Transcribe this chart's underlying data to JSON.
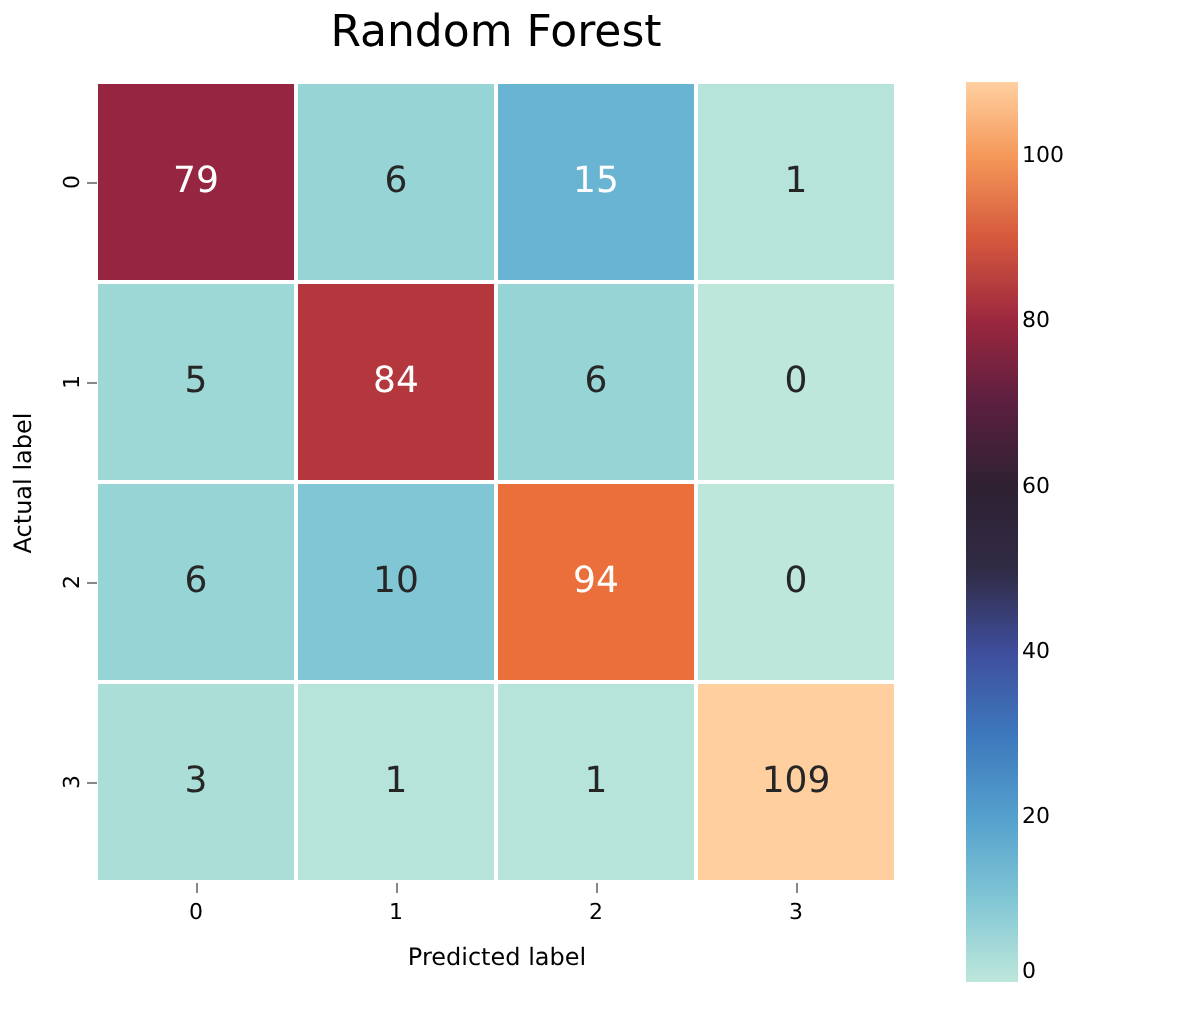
{
  "chart_data": {
    "type": "heatmap",
    "title": "Random Forest",
    "xlabel": "Predicted label",
    "ylabel": "Actual label",
    "categories": [
      "0",
      "1",
      "2",
      "3"
    ],
    "y_categories": [
      "0",
      "1",
      "2",
      "3"
    ],
    "cells": [
      [
        79,
        6,
        15,
        1
      ],
      [
        5,
        84,
        6,
        0
      ],
      [
        6,
        10,
        94,
        0
      ],
      [
        3,
        1,
        1,
        109
      ]
    ],
    "clim": [
      0,
      109
    ],
    "cticks": [
      0,
      20,
      40,
      60,
      80,
      100
    ],
    "data_labels": true
  }
}
